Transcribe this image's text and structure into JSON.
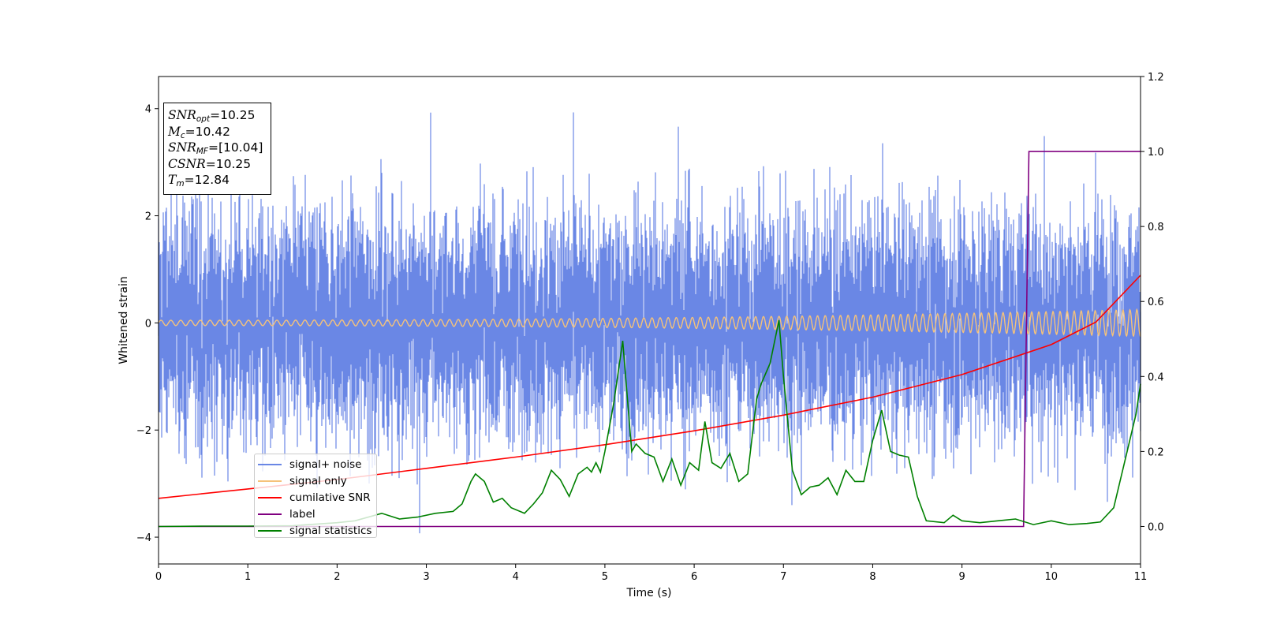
{
  "chart_data": {
    "type": "line",
    "xlabel": "Time (s)",
    "ylabel": "Whitened strain",
    "xlim": [
      0,
      11
    ],
    "ylim": [
      -4.5,
      4.6
    ],
    "y2lim": [
      -0.1,
      1.2
    ],
    "x_ticks": [
      "0",
      "1",
      "2",
      "3",
      "4",
      "5",
      "6",
      "7",
      "8",
      "9",
      "10",
      "11"
    ],
    "y_ticks": [
      "4",
      "2",
      "0",
      "−2",
      "−4"
    ],
    "y_tick_values": [
      4,
      2,
      0,
      -2,
      -4
    ],
    "y2_ticks": [
      "1.2",
      "1.0",
      "0.8",
      "0.6",
      "0.4",
      "0.2",
      "0.0"
    ],
    "y2_tick_values": [
      1.2,
      1.0,
      0.8,
      0.6,
      0.4,
      0.2,
      0.0
    ],
    "grid": false,
    "legend_position": "lower-left",
    "annotation": {
      "snr_opt": "10.25",
      "mc": "10.42",
      "snr_mf": "[10.04]",
      "csnr": "10.25",
      "tm": "12.84"
    },
    "series": [
      {
        "name": "signal+ noise",
        "color": "#6a87e5",
        "axis": "left",
        "description": "whitened noise with amplitude about ±2, occasional spikes up to 4.2 and down to -4.1",
        "envelope": {
          "x": [
            0,
            11
          ],
          "min": -4.1,
          "max": 4.2
        }
      },
      {
        "name": "signal only",
        "color": "#f5c27a",
        "axis": "left",
        "chirp": {
          "amplitude_start": 0.05,
          "amplitude_end": 0.25,
          "x_start": 0,
          "x_end": 11
        }
      },
      {
        "name": "cumilative SNR",
        "color": "#ff0000",
        "axis": "right",
        "x": [
          0,
          1,
          2,
          3,
          4,
          5,
          6,
          7,
          8,
          9,
          10,
          10.5,
          11
        ],
        "y": [
          0.075,
          0.1,
          0.125,
          0.155,
          0.185,
          0.218,
          0.255,
          0.297,
          0.345,
          0.405,
          0.485,
          0.545,
          0.67
        ]
      },
      {
        "name": "label",
        "color": "#800080",
        "axis": "right",
        "x": [
          0,
          9.69,
          9.75,
          11
        ],
        "y": [
          0.0,
          0.0,
          1.0,
          1.0
        ]
      },
      {
        "name": "signal statistics",
        "color": "#008000",
        "axis": "right",
        "x": [
          0,
          0.5,
          1,
          1.5,
          2,
          2.2,
          2.5,
          2.7,
          2.9,
          3.1,
          3.3,
          3.4,
          3.5,
          3.55,
          3.65,
          3.75,
          3.85,
          3.95,
          4.1,
          4.2,
          4.3,
          4.4,
          4.5,
          4.6,
          4.7,
          4.8,
          4.85,
          4.9,
          4.95,
          5.0,
          5.1,
          5.2,
          5.3,
          5.35,
          5.45,
          5.55,
          5.65,
          5.75,
          5.85,
          5.95,
          6.05,
          6.12,
          6.2,
          6.3,
          6.4,
          6.5,
          6.6,
          6.7,
          6.75,
          6.85,
          6.95,
          7.0,
          7.1,
          7.2,
          7.3,
          7.4,
          7.5,
          7.6,
          7.7,
          7.8,
          7.9,
          8.0,
          8.1,
          8.2,
          8.3,
          8.4,
          8.5,
          8.6,
          8.8,
          8.9,
          9.0,
          9.2,
          9.4,
          9.6,
          9.8,
          10.0,
          10.2,
          10.4,
          10.55,
          10.7,
          10.85,
          10.95,
          11.0
        ],
        "y": [
          0.0,
          0.001,
          0.001,
          0.002,
          0.01,
          0.015,
          0.035,
          0.02,
          0.025,
          0.035,
          0.04,
          0.06,
          0.12,
          0.14,
          0.12,
          0.065,
          0.075,
          0.05,
          0.035,
          0.06,
          0.09,
          0.15,
          0.125,
          0.08,
          0.14,
          0.158,
          0.145,
          0.17,
          0.145,
          0.2,
          0.33,
          0.495,
          0.2,
          0.22,
          0.195,
          0.185,
          0.12,
          0.18,
          0.11,
          0.17,
          0.15,
          0.28,
          0.17,
          0.155,
          0.195,
          0.12,
          0.14,
          0.34,
          0.38,
          0.435,
          0.55,
          0.4,
          0.15,
          0.085,
          0.105,
          0.11,
          0.13,
          0.085,
          0.15,
          0.12,
          0.12,
          0.23,
          0.31,
          0.2,
          0.19,
          0.185,
          0.08,
          0.015,
          0.01,
          0.03,
          0.015,
          0.01,
          0.015,
          0.02,
          0.005,
          0.015,
          0.005,
          0.008,
          0.012,
          0.05,
          0.2,
          0.3,
          0.38
        ]
      }
    ]
  }
}
